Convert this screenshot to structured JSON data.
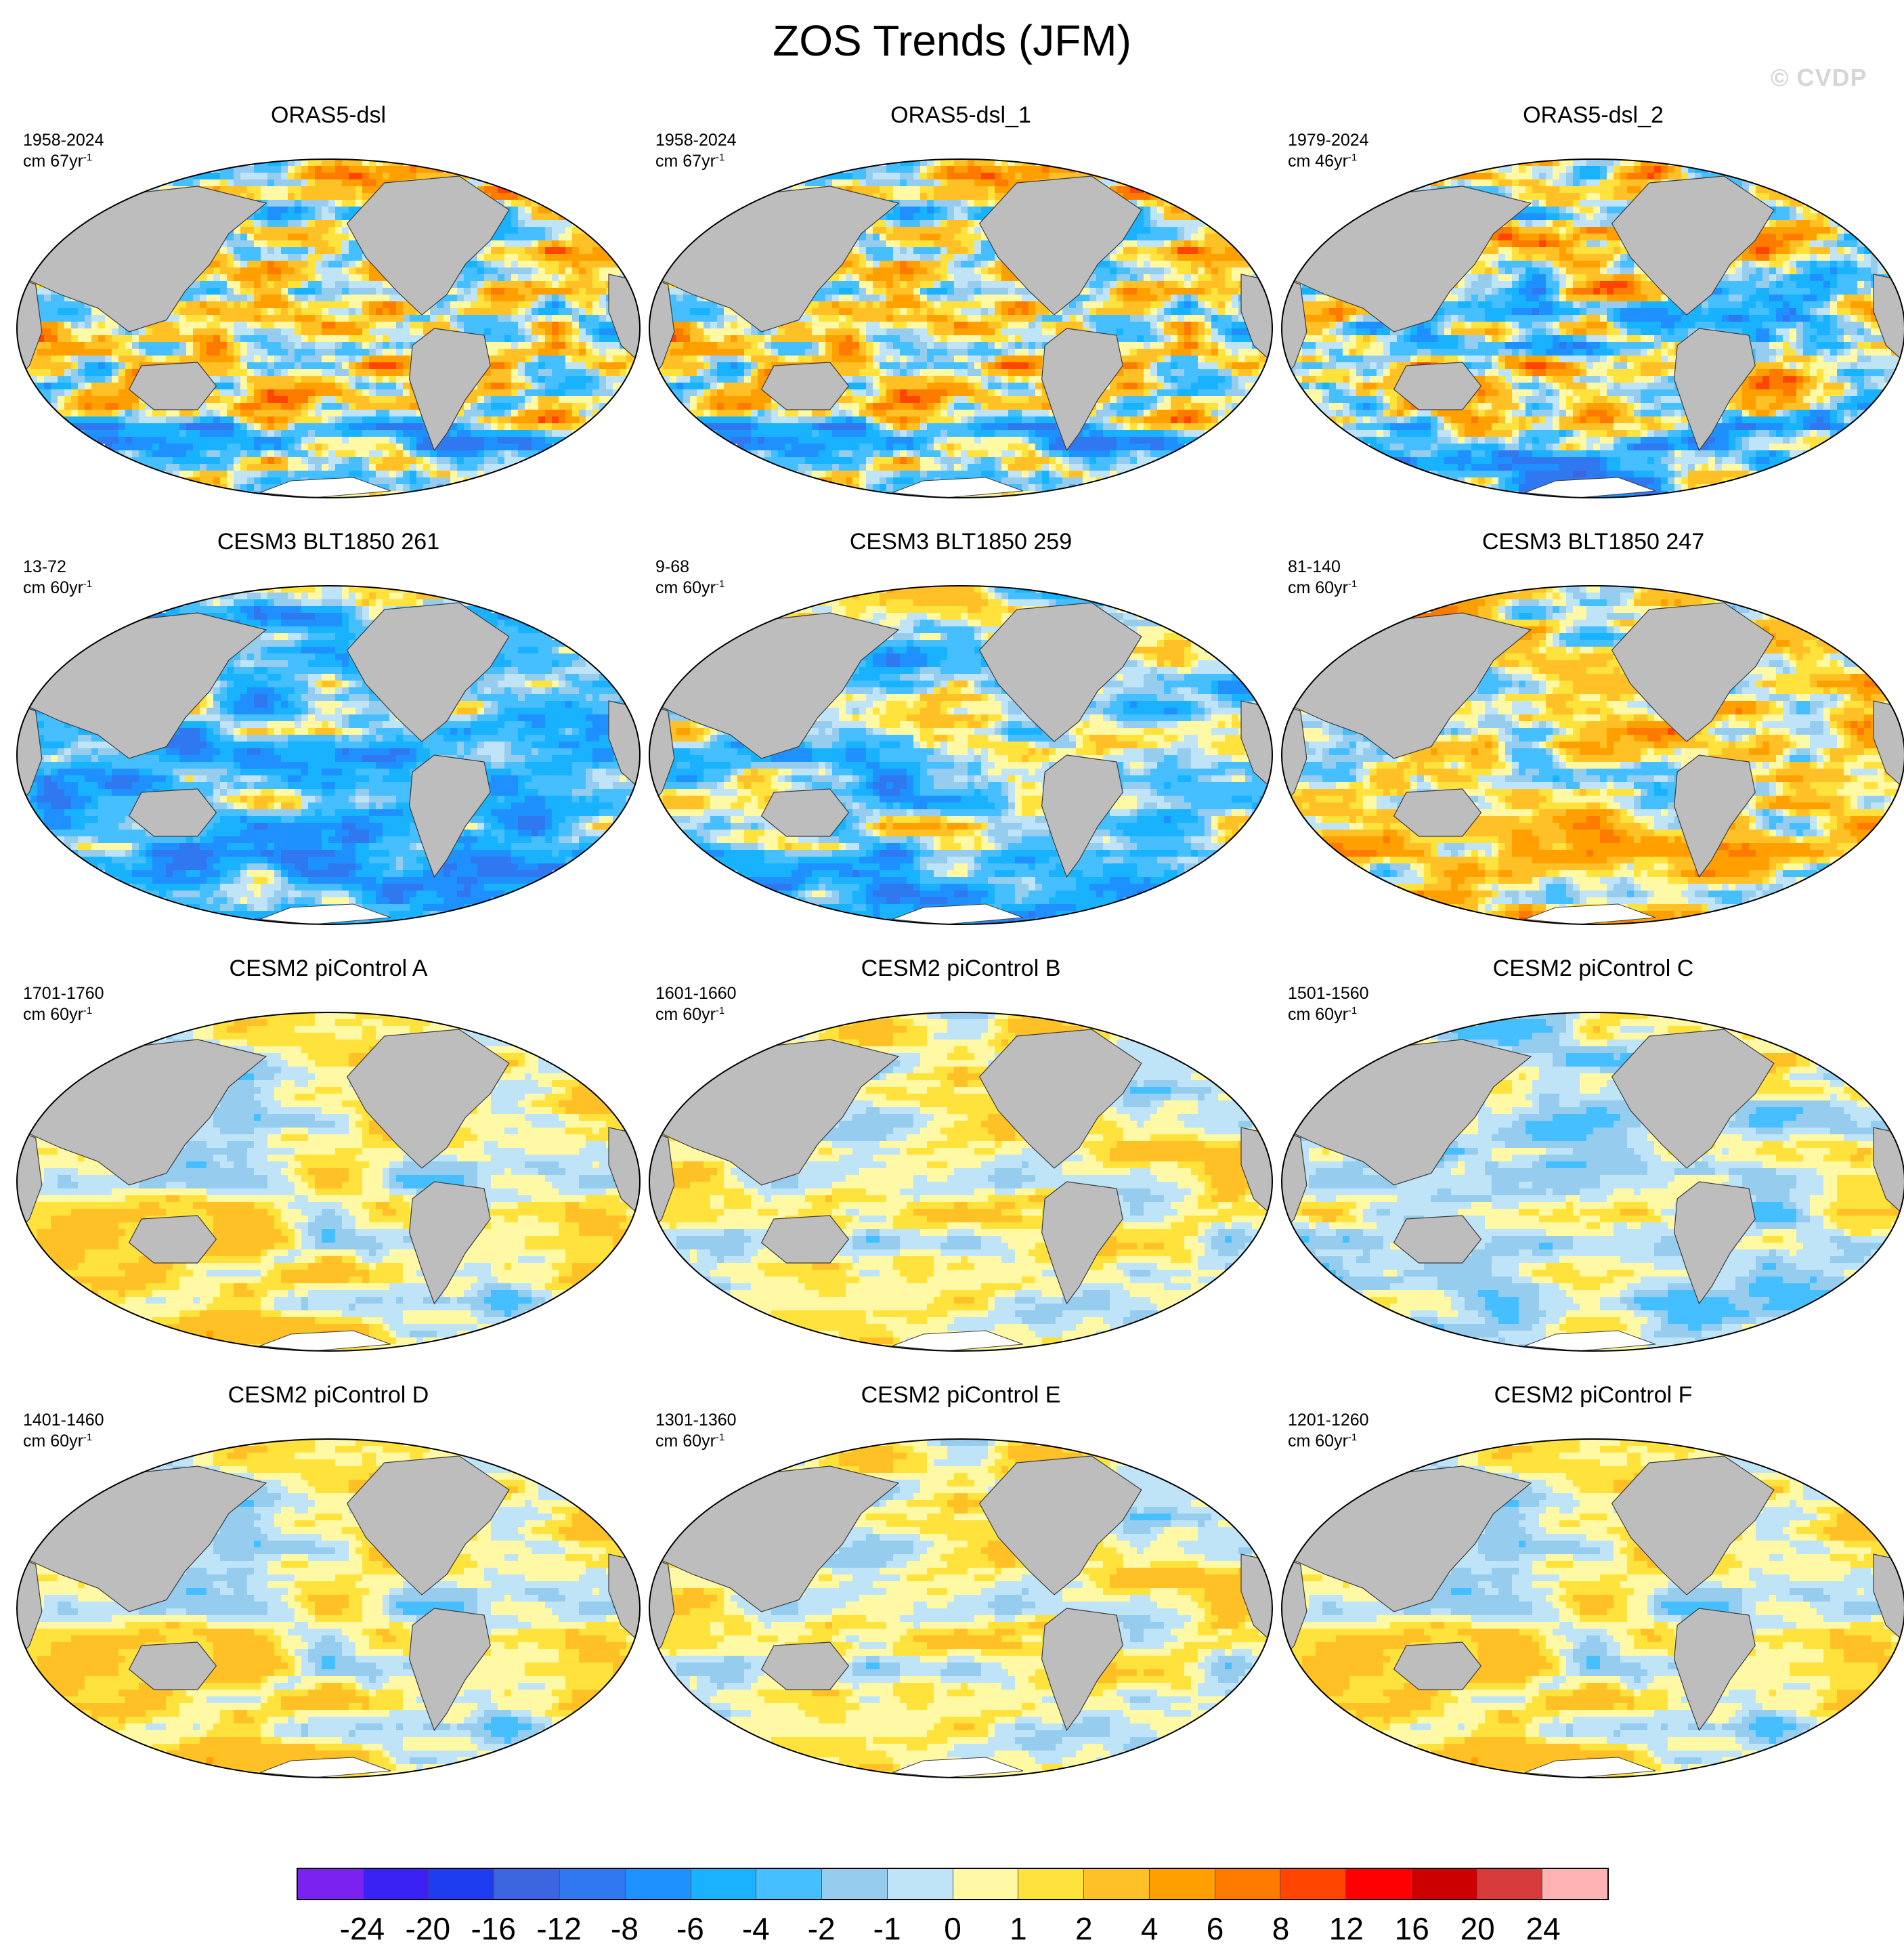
{
  "figure": {
    "title": "ZOS Trends (JFM)",
    "watermark": "© CVDP"
  },
  "colors": {
    "land": "#bdbdbd",
    "ice": "#ffffff",
    "coast": "#3c3c3c"
  },
  "panels": [
    {
      "title": "ORAS5-dsl",
      "period": "1958-2024",
      "unit_prefix": "cm 67yr",
      "unit_exp": "-1",
      "pattern": "obs_long"
    },
    {
      "title": "ORAS5-dsl_1",
      "period": "1958-2024",
      "unit_prefix": "cm 67yr",
      "unit_exp": "-1",
      "pattern": "obs_long"
    },
    {
      "title": "ORAS5-dsl_2",
      "period": "1979-2024",
      "unit_prefix": "cm 46yr",
      "unit_exp": "-1",
      "pattern": "obs_short"
    },
    {
      "title": "CESM3 BLT1850 261",
      "period": "13-72",
      "unit_prefix": "cm 60yr",
      "unit_exp": "-1",
      "pattern": "model_neg_strong"
    },
    {
      "title": "CESM3 BLT1850 259",
      "period": "9-68",
      "unit_prefix": "cm 60yr",
      "unit_exp": "-1",
      "pattern": "model_neg"
    },
    {
      "title": "CESM3 BLT1850 247",
      "period": "81-140",
      "unit_prefix": "cm 60yr",
      "unit_exp": "-1",
      "pattern": "model_pos"
    },
    {
      "title": "CESM2 piControl A",
      "period": "1701-1760",
      "unit_prefix": "cm 60yr",
      "unit_exp": "-1",
      "pattern": "pi_mixed_pos"
    },
    {
      "title": "CESM2 piControl B",
      "period": "1601-1660",
      "unit_prefix": "cm 60yr",
      "unit_exp": "-1",
      "pattern": "pi_mixed"
    },
    {
      "title": "CESM2 piControl C",
      "period": "1501-1560",
      "unit_prefix": "cm 60yr",
      "unit_exp": "-1",
      "pattern": "pi_mixed_neg"
    },
    {
      "title": "CESM2 piControl D",
      "period": "1401-1460",
      "unit_prefix": "cm 60yr",
      "unit_exp": "-1",
      "pattern": "pi_mixed_pos"
    },
    {
      "title": "CESM2 piControl E",
      "period": "1301-1360",
      "unit_prefix": "cm 60yr",
      "unit_exp": "-1",
      "pattern": "pi_mixed"
    },
    {
      "title": "CESM2 piControl F",
      "period": "1201-1260",
      "unit_prefix": "cm 60yr",
      "unit_exp": "-1",
      "pattern": "pi_mixed_pos"
    }
  ],
  "colorbar": {
    "colors": [
      "#7b22ee",
      "#3a22f5",
      "#1f3df0",
      "#3c66e0",
      "#2f78f0",
      "#1e90ff",
      "#19b2ff",
      "#45bfff",
      "#96cdef",
      "#bfe3f7",
      "#fff9a6",
      "#ffe23c",
      "#ffc125",
      "#ffa000",
      "#ff7b00",
      "#ff4500",
      "#ff0000",
      "#cd0000",
      "#d63a3a",
      "#ffb3b3"
    ],
    "labels": [
      "-24",
      "-20",
      "-16",
      "-12",
      "-8",
      "-6",
      "-4",
      "-2",
      "-1",
      "0",
      "1",
      "2",
      "4",
      "6",
      "8",
      "12",
      "16",
      "20",
      "24"
    ]
  }
}
